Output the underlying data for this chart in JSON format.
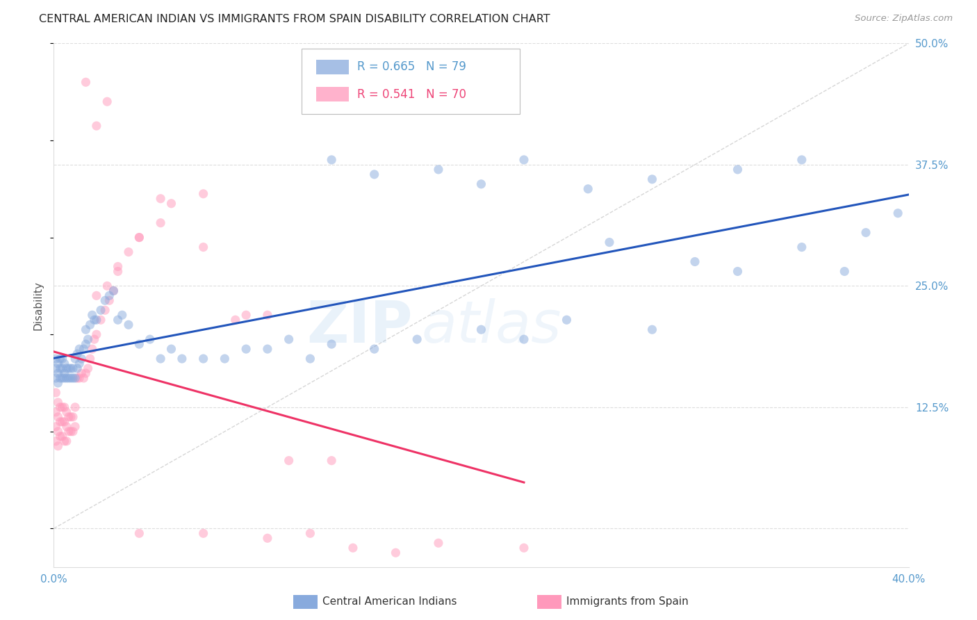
{
  "title": "CENTRAL AMERICAN INDIAN VS IMMIGRANTS FROM SPAIN DISABILITY CORRELATION CHART",
  "source": "Source: ZipAtlas.com",
  "ylabel": "Disability",
  "watermark": "ZIPatlas",
  "xmin": 0.0,
  "xmax": 0.4,
  "ymin": -0.04,
  "ymax": 0.5,
  "ytick_positions": [
    0.0,
    0.125,
    0.25,
    0.375,
    0.5
  ],
  "ytick_labels_right": [
    "",
    "12.5%",
    "25.0%",
    "37.5%",
    "50.0%"
  ],
  "xtick_positions": [
    0.0,
    0.1,
    0.2,
    0.3,
    0.4
  ],
  "xtick_labels": [
    "0.0%",
    "",
    "",
    "",
    "40.0%"
  ],
  "series1_color": "#88AADD",
  "series2_color": "#FF99BB",
  "line1_color": "#2255BB",
  "line2_color": "#EE3366",
  "ref_line_color": "#CCCCCC",
  "axis_color": "#5599CC",
  "grid_color": "#DDDDDD",
  "title_color": "#222222",
  "source_color": "#999999",
  "background_color": "#FFFFFF",
  "blue_x": [
    0.001,
    0.001,
    0.001,
    0.002,
    0.002,
    0.002,
    0.003,
    0.003,
    0.003,
    0.004,
    0.004,
    0.004,
    0.005,
    0.005,
    0.005,
    0.006,
    0.006,
    0.007,
    0.007,
    0.008,
    0.008,
    0.009,
    0.009,
    0.01,
    0.01,
    0.011,
    0.011,
    0.012,
    0.012,
    0.013,
    0.014,
    0.015,
    0.015,
    0.016,
    0.017,
    0.018,
    0.019,
    0.02,
    0.022,
    0.024,
    0.026,
    0.028,
    0.03,
    0.032,
    0.035,
    0.04,
    0.045,
    0.05,
    0.055,
    0.06,
    0.07,
    0.08,
    0.09,
    0.1,
    0.11,
    0.12,
    0.13,
    0.15,
    0.17,
    0.2,
    0.22,
    0.24,
    0.26,
    0.28,
    0.3,
    0.32,
    0.35,
    0.37,
    0.38,
    0.395,
    0.13,
    0.15,
    0.18,
    0.2,
    0.22,
    0.25,
    0.28,
    0.32,
    0.35
  ],
  "blue_y": [
    0.155,
    0.165,
    0.175,
    0.15,
    0.16,
    0.17,
    0.155,
    0.165,
    0.175,
    0.155,
    0.165,
    0.175,
    0.155,
    0.16,
    0.17,
    0.155,
    0.165,
    0.155,
    0.165,
    0.155,
    0.165,
    0.155,
    0.165,
    0.155,
    0.175,
    0.165,
    0.18,
    0.17,
    0.185,
    0.175,
    0.185,
    0.19,
    0.205,
    0.195,
    0.21,
    0.22,
    0.215,
    0.215,
    0.225,
    0.235,
    0.24,
    0.245,
    0.215,
    0.22,
    0.21,
    0.19,
    0.195,
    0.175,
    0.185,
    0.175,
    0.175,
    0.175,
    0.185,
    0.185,
    0.195,
    0.175,
    0.19,
    0.185,
    0.195,
    0.205,
    0.195,
    0.215,
    0.295,
    0.205,
    0.275,
    0.265,
    0.29,
    0.265,
    0.305,
    0.325,
    0.38,
    0.365,
    0.37,
    0.355,
    0.38,
    0.35,
    0.36,
    0.37,
    0.38
  ],
  "pink_x": [
    0.001,
    0.001,
    0.001,
    0.001,
    0.002,
    0.002,
    0.002,
    0.002,
    0.003,
    0.003,
    0.003,
    0.004,
    0.004,
    0.004,
    0.005,
    0.005,
    0.005,
    0.006,
    0.006,
    0.006,
    0.007,
    0.007,
    0.008,
    0.008,
    0.009,
    0.009,
    0.01,
    0.01,
    0.011,
    0.012,
    0.013,
    0.014,
    0.015,
    0.016,
    0.017,
    0.018,
    0.019,
    0.02,
    0.022,
    0.024,
    0.026,
    0.028,
    0.03,
    0.035,
    0.04,
    0.05,
    0.055,
    0.07,
    0.085,
    0.1,
    0.11,
    0.13,
    0.04,
    0.07,
    0.1,
    0.12,
    0.14,
    0.16,
    0.18,
    0.22,
    0.02,
    0.025,
    0.03,
    0.04,
    0.05,
    0.07,
    0.09,
    0.015,
    0.02,
    0.025
  ],
  "pink_y": [
    0.14,
    0.12,
    0.105,
    0.09,
    0.13,
    0.115,
    0.1,
    0.085,
    0.125,
    0.11,
    0.095,
    0.125,
    0.11,
    0.095,
    0.125,
    0.11,
    0.09,
    0.12,
    0.105,
    0.09,
    0.115,
    0.1,
    0.115,
    0.1,
    0.115,
    0.1,
    0.125,
    0.105,
    0.155,
    0.155,
    0.16,
    0.155,
    0.16,
    0.165,
    0.175,
    0.185,
    0.195,
    0.2,
    0.215,
    0.225,
    0.235,
    0.245,
    0.265,
    0.285,
    0.3,
    0.315,
    0.335,
    0.29,
    0.215,
    0.22,
    0.07,
    0.07,
    -0.005,
    -0.005,
    -0.01,
    -0.005,
    -0.02,
    -0.025,
    -0.015,
    -0.02,
    0.24,
    0.25,
    0.27,
    0.3,
    0.34,
    0.345,
    0.22,
    0.46,
    0.415,
    0.44
  ]
}
